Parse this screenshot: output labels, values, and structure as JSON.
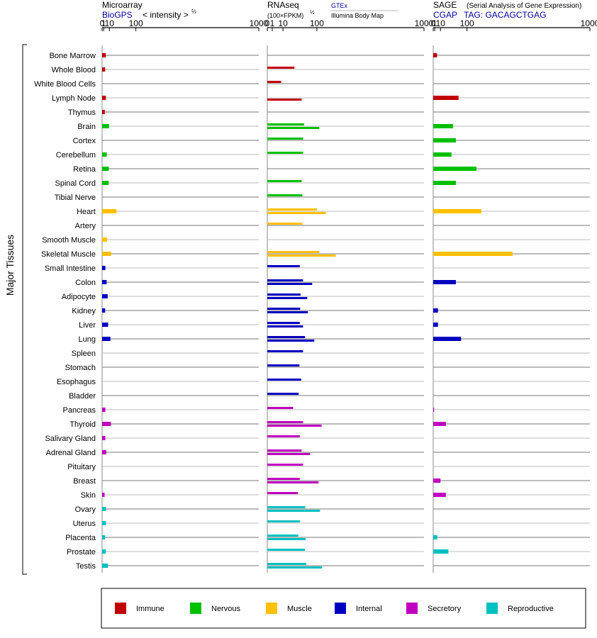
{
  "panels": [
    {
      "id": "microarray",
      "title": "Microarray",
      "subtitle_link": "BioGPS",
      "subtitle_note": "< intensity >",
      "superscript": "⅔",
      "ticks": [
        "0",
        "1",
        "10",
        "100",
        "1000"
      ]
    },
    {
      "id": "rnaseq",
      "title": "RNAseq",
      "subtitle_note": "(100×FPKM)",
      "superscript": "½",
      "source_top": "GTEx",
      "source_bottom": "Illumina Body Map",
      "ticks": [
        "0",
        "1",
        "10",
        "100",
        "1000"
      ]
    },
    {
      "id": "sage",
      "title": "SAGE",
      "title_note": "(Serial Analysis of Gene Expression)",
      "subtitle_link": "CGAP",
      "subtitle_tag": "TAG: GACAGCTGAG",
      "ticks": [
        "0",
        "1",
        "10",
        "100",
        "1000"
      ]
    }
  ],
  "y_axis_label": "Major Tissues",
  "legend": [
    {
      "label": "Immune",
      "color": "#c00000"
    },
    {
      "label": "Nervous",
      "color": "#00c000"
    },
    {
      "label": "Muscle",
      "color": "#ffc000"
    },
    {
      "label": "Internal",
      "color": "#0000c0"
    },
    {
      "label": "Secretory",
      "color": "#c000c0"
    },
    {
      "label": "Reproductive",
      "color": "#00c0c0"
    }
  ],
  "chart_data": {
    "type": "bar",
    "scale": "power (0, 1, 10, 100, 1000 ticks)",
    "categories": [
      "Bone Marrow",
      "Whole Blood",
      "White Blood Cells",
      "Lymph Node",
      "Thymus",
      "Brain",
      "Cortex",
      "Cerebellum",
      "Retina",
      "Spinal Cord",
      "Tibial Nerve",
      "Heart",
      "Artery",
      "Smooth Muscle",
      "Skeletal Muscle",
      "Small Intestine",
      "Colon",
      "Adipocyte",
      "Kidney",
      "Liver",
      "Lung",
      "Spleen",
      "Stomach",
      "Esophagus",
      "Bladder",
      "Pancreas",
      "Thyroid",
      "Salivary Gland",
      "Adrenal Gland",
      "Pituitary",
      "Breast",
      "Skin",
      "Ovary",
      "Uterus",
      "Placenta",
      "Prostate",
      "Testis"
    ],
    "groups": [
      "Immune",
      "Immune",
      "Immune",
      "Immune",
      "Immune",
      "Nervous",
      "Nervous",
      "Nervous",
      "Nervous",
      "Nervous",
      "Nervous",
      "Muscle",
      "Muscle",
      "Muscle",
      "Muscle",
      "Internal",
      "Internal",
      "Internal",
      "Internal",
      "Internal",
      "Internal",
      "Internal",
      "Internal",
      "Internal",
      "Internal",
      "Secretory",
      "Secretory",
      "Secretory",
      "Secretory",
      "Secretory",
      "Secretory",
      "Secretory",
      "Reproductive",
      "Reproductive",
      "Reproductive",
      "Reproductive",
      "Reproductive"
    ],
    "microarray": [
      3.6,
      2.7,
      null,
      3.8,
      2.3,
      9.3,
      null,
      5.1,
      8.8,
      8.6,
      null,
      28,
      null,
      5.7,
      13.8,
      3.0,
      4.9,
      6.7,
      2.7,
      7.5,
      12.3,
      null,
      null,
      null,
      null,
      3.0,
      13.3,
      2.9,
      4.4,
      null,
      null,
      2.0,
      3.8,
      3.8,
      2.6,
      3.6,
      7.1
    ],
    "rnaseq_gtex": [
      null,
      30,
      7.8,
      null,
      null,
      55,
      52,
      52,
      null,
      48,
      50,
      100,
      50,
      null,
      110,
      43,
      52,
      45,
      44,
      43,
      58,
      52,
      42,
      47,
      40,
      27,
      52,
      43,
      48,
      52,
      43,
      38,
      59,
      43,
      39,
      58,
      62
    ],
    "rnaseq_illumina": [
      null,
      null,
      null,
      48,
      null,
      110,
      null,
      null,
      null,
      null,
      null,
      140,
      null,
      null,
      190,
      null,
      82,
      65,
      67,
      52,
      90,
      null,
      null,
      null,
      null,
      null,
      120,
      null,
      74,
      null,
      107,
      null,
      113,
      null,
      60,
      null,
      122
    ],
    "sage": [
      3.8,
      null,
      null,
      65,
      null,
      45,
      55,
      40,
      145,
      55,
      null,
      170,
      null,
      null,
      360,
      null,
      55,
      null,
      5.3,
      5.3,
      75,
      null,
      null,
      null,
      null,
      0.02,
      23,
      null,
      null,
      null,
      10,
      23,
      null,
      null,
      4.2,
      30,
      null
    ]
  }
}
